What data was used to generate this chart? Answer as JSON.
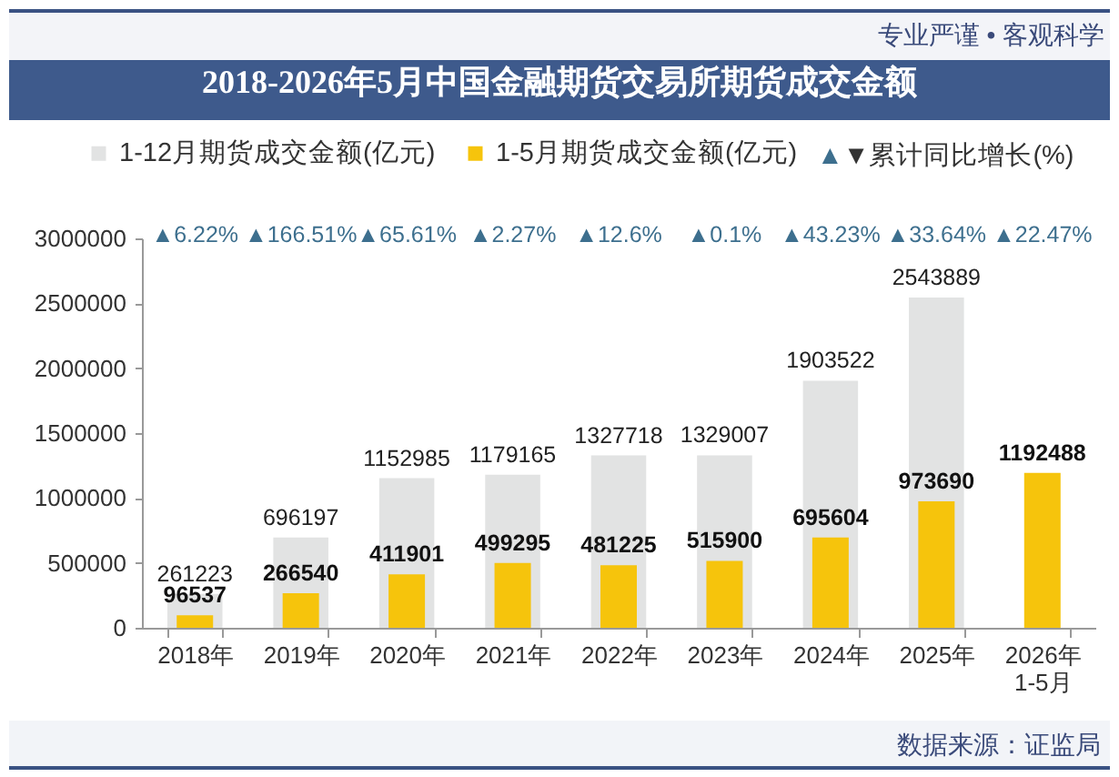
{
  "chart_data": {
    "type": "bar",
    "title": "2018-2026年5月中国金融期货交易所期货成交金额",
    "categories": [
      "2018年",
      "2019年",
      "2020年",
      "2021年",
      "2022年",
      "2023年",
      "2024年",
      "2025年",
      "2026年\n1-5月"
    ],
    "series": [
      {
        "name": "1-12月期货成交金额(亿元)",
        "color": "#e2e3e3",
        "values": [
          261223,
          696197,
          1152985,
          1179165,
          1327718,
          1329007,
          1903522,
          2543889,
          null
        ]
      },
      {
        "name": "1-5月期货成交金额(亿元)",
        "color": "#f6c40c",
        "values": [
          96537,
          266540,
          411901,
          499295,
          481225,
          515900,
          695604,
          973690,
          1192488
        ]
      }
    ],
    "ylim": [
      0,
      3000000
    ],
    "yticks": [
      0,
      500000,
      1000000,
      1500000,
      2000000,
      2500000,
      3000000
    ],
    "grid": false,
    "legend": "top",
    "data_labels": true,
    "annotations": [
      "▲6.22%",
      "▲166.51%",
      "▲65.61%",
      "▲2.27%",
      "▲12.6%",
      "▲0.1%",
      "▲43.23%",
      "▲33.64%",
      "▲22.47%",
      "▲▼累计同比增长(%)",
      "专业严谨 • 客观科学",
      "数据来源：证监局"
    ]
  }
}
